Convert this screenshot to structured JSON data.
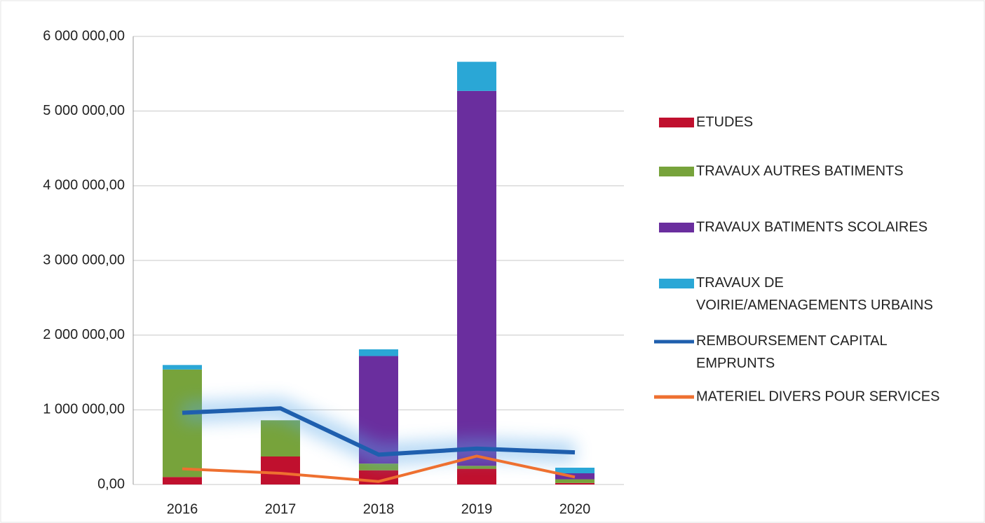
{
  "chart_data": {
    "type": "bar",
    "categories": [
      "2016",
      "2017",
      "2018",
      "2019",
      "2020"
    ],
    "series": [
      {
        "name": "ETUDES",
        "color": "#c0102e",
        "values": [
          100000,
          375000,
          190000,
          210000,
          20000
        ]
      },
      {
        "name": "TRAVAUX AUTRES BATIMENTS",
        "color": "#77a33b",
        "values": [
          1440000,
          485000,
          90000,
          40000,
          50000
        ]
      },
      {
        "name": "TRAVAUX BATIMENTS SCOLAIRES",
        "color": "#6a2e9e",
        "values": [
          0,
          0,
          1440000,
          5020000,
          80000
        ]
      },
      {
        "name": "TRAVAUX DE VOIRIE/AMENAGEMENTS URBAINS",
        "color": "#2aa7d6",
        "values": [
          60000,
          0,
          90000,
          390000,
          75000
        ]
      },
      {
        "name": "REMBOURSEMENT CAPITAL EMPRUNTS",
        "type": "line",
        "color": "#1f5fae",
        "values": [
          960000,
          1020000,
          400000,
          480000,
          430000
        ]
      },
      {
        "name": "MATERIEL DIVERS POUR SERVICES",
        "type": "line",
        "color": "#ee7030",
        "values": [
          210000,
          150000,
          40000,
          380000,
          100000
        ]
      }
    ],
    "stacked": true,
    "ylim": [
      0,
      6000000
    ],
    "yticks": [
      {
        "value": 0,
        "label": "0,00"
      },
      {
        "value": 1000000,
        "label": "1 000 000,00"
      },
      {
        "value": 2000000,
        "label": "2 000 000,00"
      },
      {
        "value": 3000000,
        "label": "3 000 000,00"
      },
      {
        "value": 4000000,
        "label": "4 000 000,00"
      },
      {
        "value": 5000000,
        "label": "5 000 000,00"
      },
      {
        "value": 6000000,
        "label": "6 000 000,00"
      }
    ],
    "grid": true,
    "legend": "right"
  }
}
